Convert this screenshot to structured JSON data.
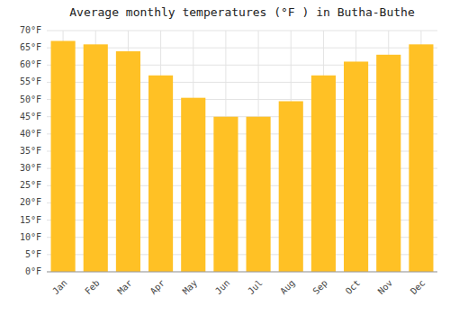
{
  "chart_data": {
    "type": "bar",
    "title": "Average monthly temperatures (°F ) in Butha-Buthe",
    "categories": [
      "Jan",
      "Feb",
      "Mar",
      "Apr",
      "May",
      "Jun",
      "Jul",
      "Aug",
      "Sep",
      "Oct",
      "Nov",
      "Dec"
    ],
    "values": [
      67,
      66,
      64,
      57,
      50.5,
      45,
      45,
      49.5,
      57,
      61,
      63,
      66
    ],
    "color": "#FFC125",
    "ylim": [
      0,
      70
    ],
    "yticks": [
      {
        "value": 0,
        "label": "0°F"
      },
      {
        "value": 5,
        "label": "5°F"
      },
      {
        "value": 10,
        "label": "10°F"
      },
      {
        "value": 15,
        "label": "15°F"
      },
      {
        "value": 20,
        "label": "20°F"
      },
      {
        "value": 25,
        "label": "25°F"
      },
      {
        "value": 30,
        "label": "30°F"
      },
      {
        "value": 35,
        "label": "35°F"
      },
      {
        "value": 40,
        "label": "40°F"
      },
      {
        "value": 45,
        "label": "45°F"
      },
      {
        "value": 50,
        "label": "50°F"
      },
      {
        "value": 55,
        "label": "55°F"
      },
      {
        "value": 60,
        "label": "60°F"
      },
      {
        "value": 65,
        "label": "65°F"
      },
      {
        "value": 70,
        "label": "70°F"
      }
    ],
    "grid": true
  }
}
